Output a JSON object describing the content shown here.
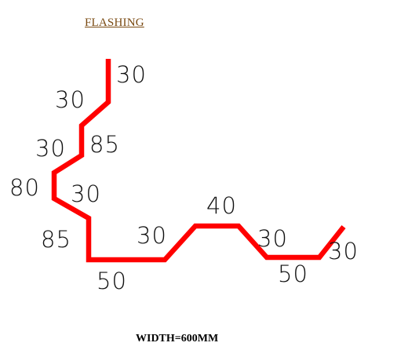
{
  "title": "FLASHING",
  "width_note": "WIDTH=600MM",
  "profile_color": "#ff0000",
  "dimensions": {
    "top_end": "30",
    "upper_slope": "30",
    "upper_vertical": "85",
    "mid_slope": "30",
    "left_outer": "80",
    "inner_slope": "30",
    "left_vertical": "85",
    "bottom_left": "50",
    "rise_slope": "30",
    "top_ridge": "40",
    "fall_slope": "30",
    "bottom_right": "50",
    "right_end": "30"
  }
}
